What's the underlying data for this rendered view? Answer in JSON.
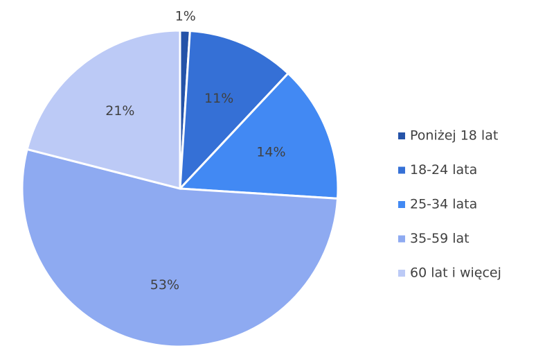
{
  "chart_data": {
    "type": "pie",
    "categories": [
      "Poniżej 18 lat",
      "18-24 lata",
      "25-34 lata",
      "35-59 lat",
      "60 lat i więcej"
    ],
    "values": [
      1,
      11,
      14,
      53,
      21
    ],
    "value_labels": [
      "1%",
      "11%",
      "14%",
      "53%",
      "21%"
    ],
    "colors": [
      "#2553a8",
      "#3570d6",
      "#4289f3",
      "#8eaaf1",
      "#bccaf6"
    ],
    "legend": "right"
  }
}
